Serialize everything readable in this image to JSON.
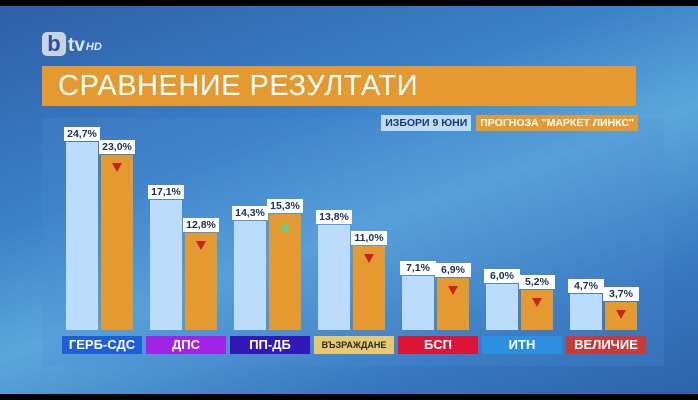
{
  "logo": {
    "b": "b",
    "tv": "tv",
    "hd": "HD"
  },
  "title": "СРАВНЕНИЕ РЕЗУЛТАТИ",
  "legend": {
    "series_a": "ИЗБОРИ 9 ЮНИ",
    "series_b": "ПРОГНОЗА \"МАРКЕТ ЛИНКС\""
  },
  "colors": {
    "series_a": "#bcdcfb",
    "series_b": "#e49a31",
    "down": "#c8231f",
    "up": "#4cd89a"
  },
  "parties": [
    {
      "name": "ГЕРБ-СДС",
      "color": "#1e5fd8",
      "a": "24,7%",
      "b": "23,0%",
      "trend": "down"
    },
    {
      "name": "ДПС",
      "color": "#a023e8",
      "a": "17,1%",
      "b": "12,8%",
      "trend": "down"
    },
    {
      "name": "ПП-ДБ",
      "color": "#3318b8",
      "a": "14,3%",
      "b": "15,3%",
      "trend": "up"
    },
    {
      "name": "ВЪЗРАЖДАНЕ",
      "color": "#e6c970",
      "a": "13,8%",
      "b": "11,0%",
      "trend": "down"
    },
    {
      "name": "БСП",
      "color": "#dc1438",
      "a": "7,1%",
      "b": "6,9%",
      "trend": "down"
    },
    {
      "name": "ИТН",
      "color": "#2d8fe0",
      "a": "6,0%",
      "b": "5,2%",
      "trend": "down"
    },
    {
      "name": "ВЕЛИЧИЕ",
      "color": "#c83a38",
      "a": "4,7%",
      "b": "3,7%",
      "trend": "down"
    }
  ],
  "chart_data": {
    "type": "bar",
    "title": "СРАВНЕНИЕ РЕЗУЛТАТИ",
    "categories": [
      "ГЕРБ-СДС",
      "ДПС",
      "ПП-ДБ",
      "ВЪЗРАЖДАНЕ",
      "БСП",
      "ИТН",
      "ВЕЛИЧИЕ"
    ],
    "series": [
      {
        "name": "ИЗБОРИ 9 ЮНИ",
        "values": [
          24.7,
          17.1,
          14.3,
          13.8,
          7.1,
          6.0,
          4.7
        ]
      },
      {
        "name": "ПРОГНОЗА \"МАРКЕТ ЛИНКС\"",
        "values": [
          23.0,
          12.8,
          15.3,
          11.0,
          6.9,
          5.2,
          3.7
        ]
      }
    ],
    "xlabel": "",
    "ylabel": "%",
    "legend_position": "top-right",
    "grid": false
  }
}
